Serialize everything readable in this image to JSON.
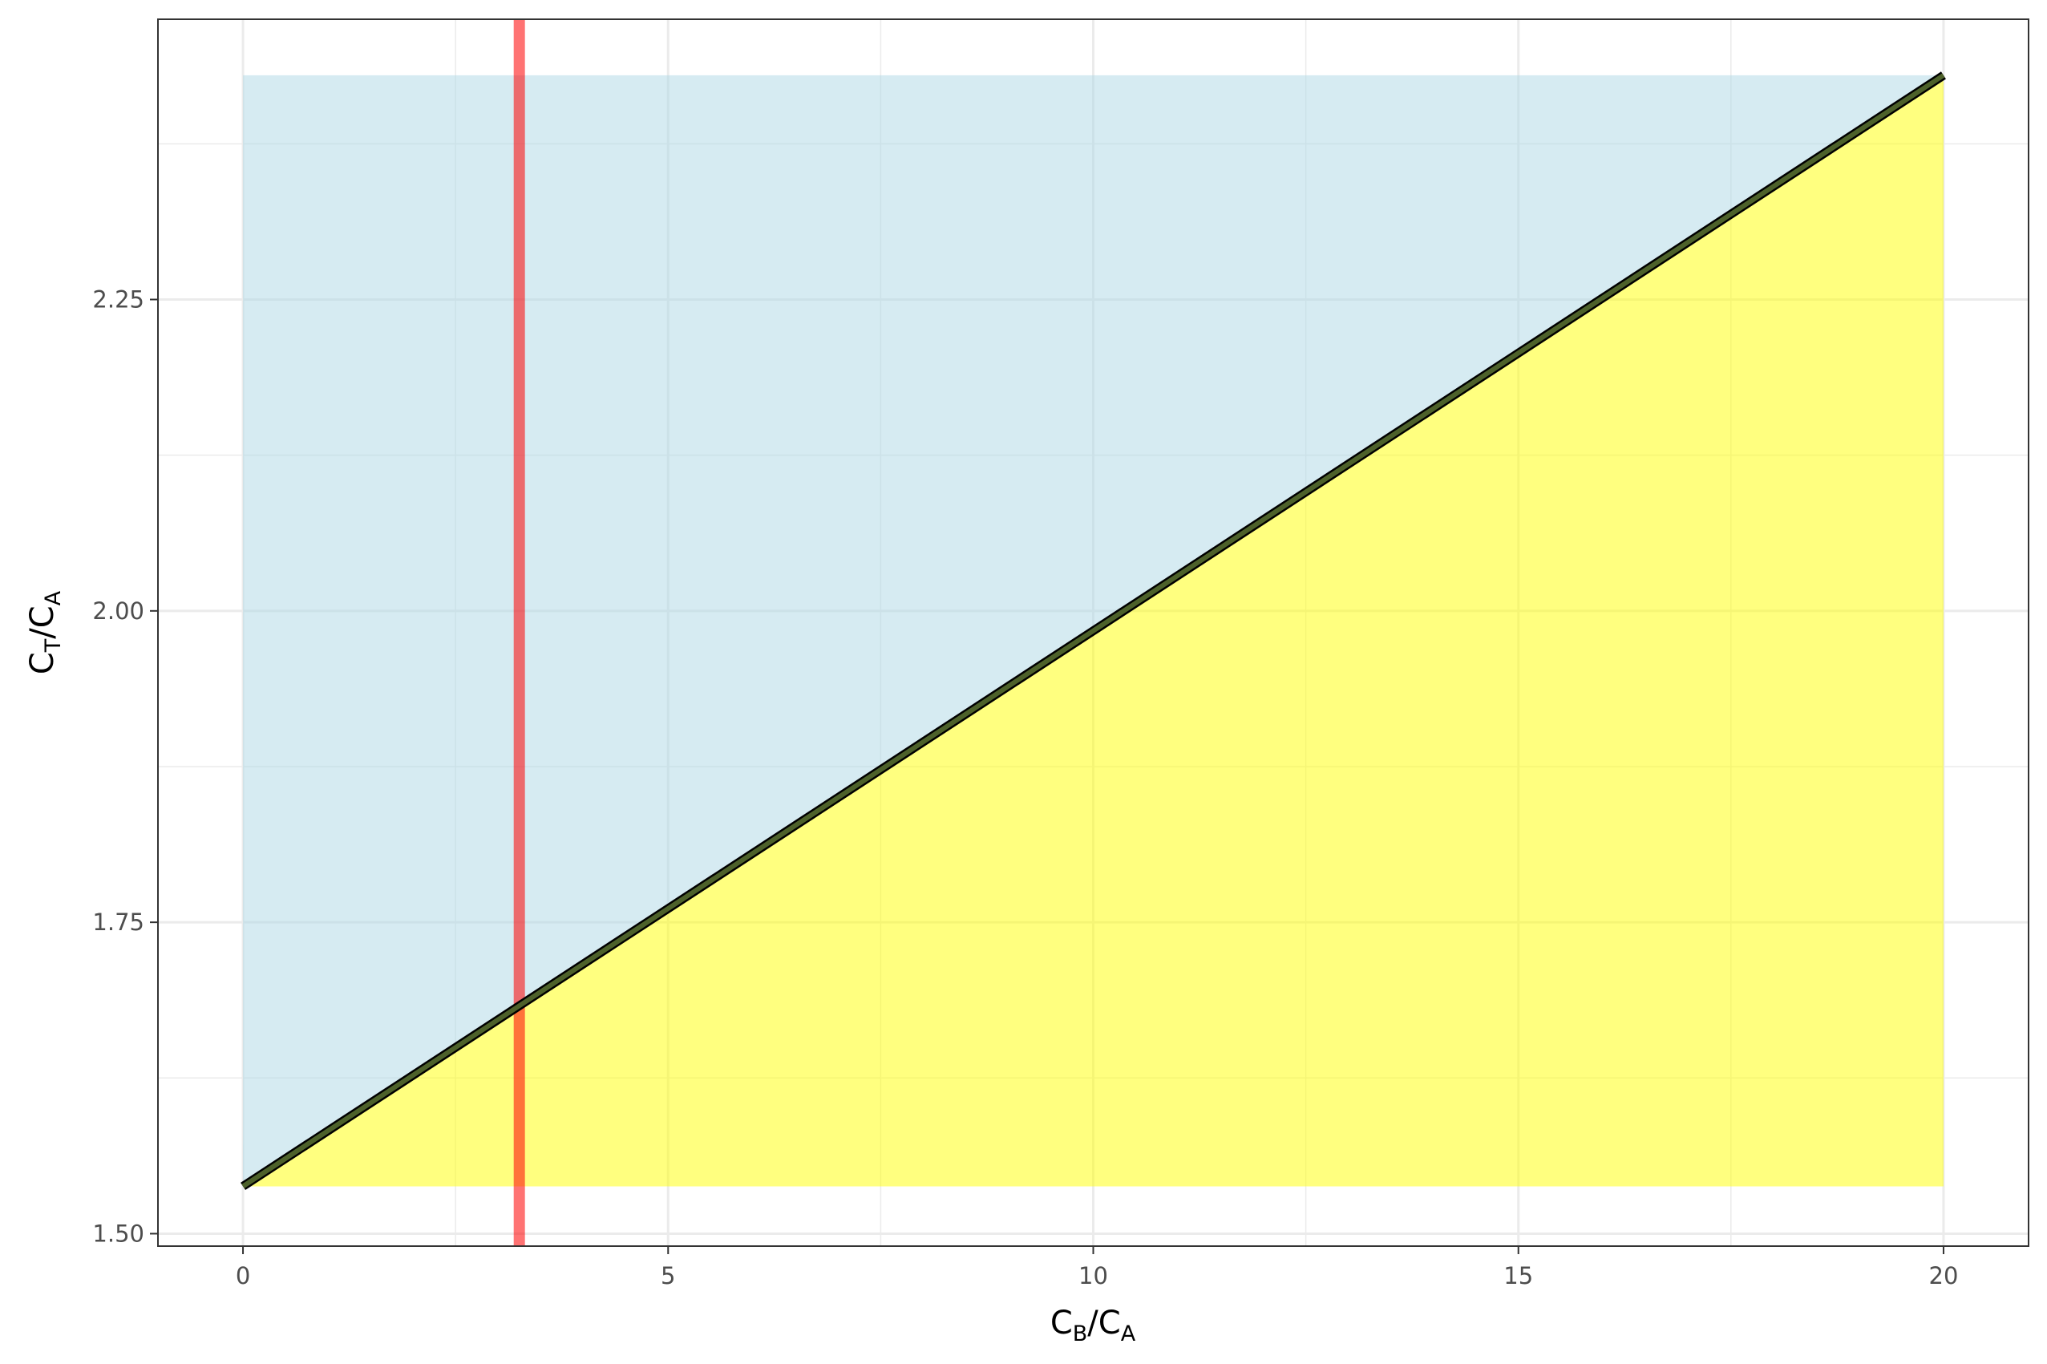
{
  "chart_data": {
    "type": "area",
    "title": "",
    "xlabel": {
      "main1": "C",
      "sub1": "B",
      "sep": "/",
      "main2": "C",
      "sub2": "A"
    },
    "ylabel": {
      "main1": "C",
      "sub1": "T",
      "sep": "/",
      "main2": "C",
      "sub2": "A"
    },
    "xlim": [
      -1,
      21
    ],
    "ylim": [
      1.49,
      2.475
    ],
    "x_ticks": [
      0,
      5,
      10,
      15,
      20
    ],
    "x_tick_labels": [
      "0",
      "5",
      "10",
      "15",
      "20"
    ],
    "y_ticks": [
      1.5,
      1.75,
      2.0,
      2.25
    ],
    "y_tick_labels": [
      "1.50",
      "1.75",
      "2.00",
      "2.25"
    ],
    "x_minor": [
      2.5,
      7.5,
      12.5,
      17.5
    ],
    "y_minor": [
      1.625,
      1.875,
      2.125,
      2.375
    ],
    "grid": true,
    "series": [
      {
        "points": [
          [
            0,
            1.538
          ],
          [
            20,
            2.43
          ]
        ]
      }
    ],
    "regions": [
      {
        "region": "above-line",
        "color": "#add8e6",
        "opacity": 0.5
      },
      {
        "region": "below-line",
        "color": "#ffff00",
        "opacity": 0.5
      }
    ],
    "domain_rect": {
      "x": [
        0,
        20
      ],
      "y": [
        1.538,
        2.43
      ]
    },
    "vertical_line": {
      "x": 3.25,
      "color": "#ff0000"
    },
    "line_colors": {
      "outer": "#000000",
      "inner": "#556b2f"
    }
  }
}
